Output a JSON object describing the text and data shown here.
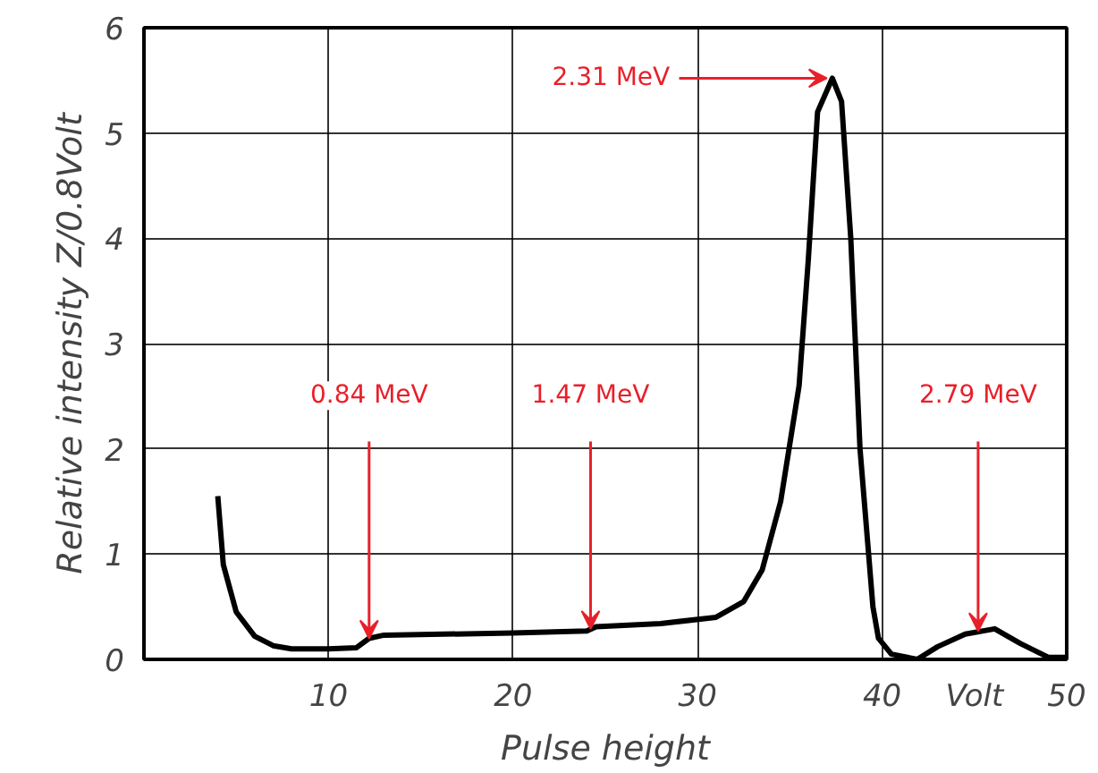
{
  "chart_data": {
    "type": "line",
    "xlabel": "Pulse height",
    "ylabel": "Relative intensity Z/0.8Volt",
    "x": [
      4.0,
      4.3,
      5,
      6,
      7,
      8,
      10,
      11.5,
      12.2,
      13,
      20,
      24,
      24.5,
      28,
      31,
      32.5,
      33.5,
      34.5,
      35.5,
      36,
      36.5,
      37.3,
      37.8,
      38.3,
      38.8,
      39.5,
      39.8,
      40.5,
      41.9,
      43,
      44.5,
      46.1,
      47.5,
      49,
      50
    ],
    "series": [
      {
        "color": "#000000",
        "values": [
          1.55,
          0.9,
          0.45,
          0.22,
          0.13,
          0.1,
          0.1,
          0.11,
          0.2,
          0.23,
          0.25,
          0.27,
          0.31,
          0.34,
          0.4,
          0.55,
          0.85,
          1.5,
          2.6,
          3.8,
          5.2,
          5.52,
          5.3,
          4.0,
          2.0,
          0.5,
          0.2,
          0.05,
          0.0,
          0.12,
          0.24,
          0.29,
          0.15,
          0.02,
          0.02
        ]
      }
    ],
    "xlim": [
      0,
      50
    ],
    "xticks": [
      10,
      20,
      30,
      40,
      50
    ],
    "ylim": [
      0,
      6
    ],
    "yticks": [
      0,
      1,
      2,
      3,
      4,
      5,
      6
    ],
    "grid": true,
    "annotations": [
      {
        "text": "0.84 MeV",
        "x": 12.2,
        "y": 0.2
      },
      {
        "text": "1.47 MeV",
        "x": 24.2,
        "y": 0.29
      },
      {
        "text": "2.31 MeV",
        "x": 37.0,
        "y": 5.52
      },
      {
        "text": "2.79 MeV",
        "x": 45.2,
        "y": 0.27
      },
      "Volt"
    ]
  }
}
